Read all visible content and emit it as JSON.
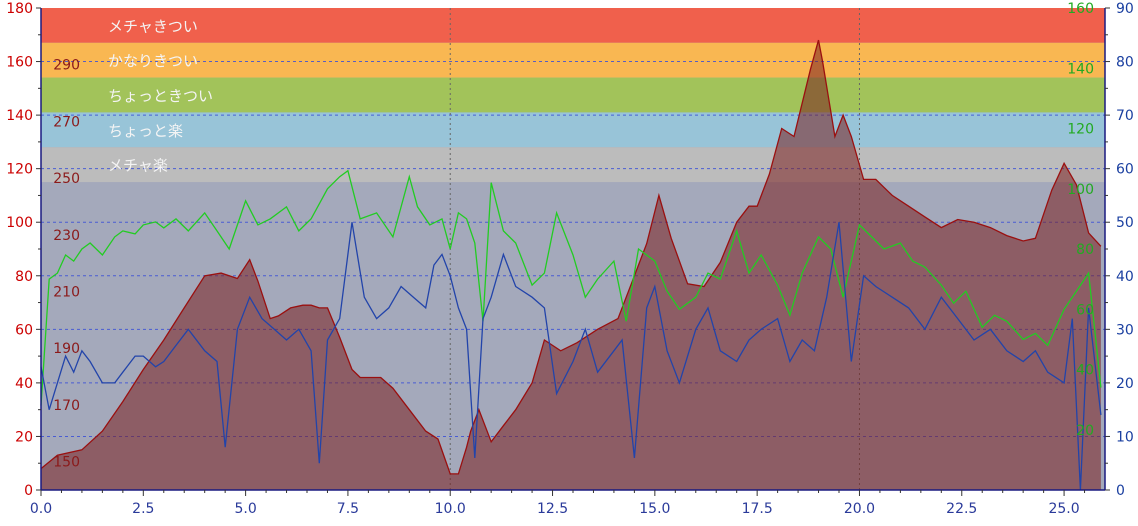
{
  "chart_data": {
    "type": "area",
    "x_ticks": [
      "0.0",
      "2.5",
      "5.0",
      "7.5",
      "10.0",
      "12.5",
      "15.0",
      "17.5",
      "20.0",
      "22.5",
      "25.0"
    ],
    "x_tick_values": [
      0,
      2.5,
      5,
      7.5,
      10,
      12.5,
      15,
      17.5,
      20,
      22.5,
      25
    ],
    "x_range": [
      0,
      26
    ],
    "axis_left": {
      "ticks": [
        "0",
        "20",
        "40",
        "60",
        "80",
        "100",
        "120",
        "140",
        "160",
        "180"
      ],
      "range": [
        0,
        180
      ],
      "color": "#cc0000"
    },
    "axis_elev": {
      "ticks": [
        "150",
        "170",
        "190",
        "210",
        "230",
        "250",
        "270",
        "290"
      ],
      "range": [
        140,
        310
      ],
      "color": "#8b1a1a"
    },
    "axis_green": {
      "ticks": [
        "20",
        "40",
        "60",
        "80",
        "100",
        "120",
        "140",
        "160"
      ],
      "range": [
        0,
        160
      ],
      "color": "#22aa22"
    },
    "axis_right": {
      "ticks": [
        "0",
        "10",
        "20",
        "30",
        "40",
        "50",
        "60",
        "70",
        "80",
        "90"
      ],
      "range": [
        0,
        90
      ],
      "color": "#1a3fa0"
    },
    "zones": [
      {
        "label": "メチャきつい",
        "from": 167,
        "to": 180,
        "color": "#f0604c"
      },
      {
        "label": "かなりきつい",
        "from": 154,
        "to": 167,
        "color": "#f9b752"
      },
      {
        "label": "ちょっときつい",
        "from": 141,
        "to": 154,
        "color": "#a2c35a"
      },
      {
        "label": "ちょっと楽",
        "from": 128,
        "to": 141,
        "color": "#98c4d8"
      },
      {
        "label": "メチャ楽",
        "from": 115,
        "to": 128,
        "color": "#bcbcbc"
      }
    ],
    "series": [
      {
        "kind": "elevation",
        "axis": "axis_left",
        "color": "#8a1c1c",
        "x": [
          0,
          0.4,
          1.0,
          1.5,
          2.0,
          2.5,
          3.0,
          3.5,
          4.0,
          4.4,
          4.8,
          5.1,
          5.3,
          5.6,
          5.8,
          6.1,
          6.4,
          6.6,
          6.8,
          7.0,
          7.3,
          7.6,
          7.8,
          8.0,
          8.3,
          8.6,
          9.0,
          9.4,
          9.7,
          10.0,
          10.2,
          10.4,
          10.5,
          10.7,
          11.0,
          11.3,
          11.6,
          12.0,
          12.3,
          12.7,
          13.1,
          13.6,
          14.1,
          14.5,
          14.8,
          15.1,
          15.4,
          15.8,
          16.2,
          16.6,
          17.0,
          17.3,
          17.5,
          17.8,
          18.1,
          18.4,
          18.8,
          19.0,
          19.1,
          19.4,
          19.6,
          19.8,
          20.1,
          20.4,
          20.8,
          21.2,
          21.6,
          22.0,
          22.4,
          22.8,
          23.2,
          23.6,
          24.0,
          24.3,
          24.7,
          25.0,
          25.3,
          25.6,
          25.9
        ],
        "values": [
          8,
          13,
          15,
          22,
          33,
          45,
          56,
          68,
          80,
          81,
          79,
          86,
          78,
          64,
          65,
          68,
          69,
          69,
          68,
          68,
          57,
          45,
          42,
          42,
          42,
          38,
          30,
          22,
          19,
          6,
          6,
          16,
          22,
          30,
          18,
          24,
          30,
          40,
          56,
          52,
          55,
          60,
          64,
          80,
          92,
          110,
          94,
          77,
          76,
          85,
          100,
          106,
          106,
          118,
          135,
          132,
          157,
          168,
          160,
          132,
          140,
          132,
          116,
          116,
          110,
          106,
          102,
          98,
          101,
          100,
          98,
          95,
          93,
          94,
          112,
          122,
          114,
          96,
          91
        ]
      },
      {
        "kind": "heart_rate",
        "axis": "axis_green",
        "color": "#22cc22",
        "x": [
          0,
          0.2,
          0.4,
          0.6,
          0.8,
          1.0,
          1.2,
          1.5,
          1.8,
          2.0,
          2.3,
          2.5,
          2.8,
          3.0,
          3.3,
          3.6,
          4.0,
          4.3,
          4.6,
          5.0,
          5.3,
          5.6,
          6.0,
          6.3,
          6.6,
          7.0,
          7.3,
          7.5,
          7.8,
          8.2,
          8.6,
          9.0,
          9.2,
          9.5,
          9.8,
          10.0,
          10.2,
          10.4,
          10.6,
          10.8,
          11.0,
          11.3,
          11.6,
          12.0,
          12.3,
          12.6,
          13.0,
          13.3,
          13.6,
          14.0,
          14.3,
          14.6,
          15.0,
          15.3,
          15.6,
          16.0,
          16.3,
          16.6,
          17.0,
          17.3,
          17.6,
          18.0,
          18.3,
          18.6,
          19.0,
          19.3,
          19.6,
          20.0,
          20.3,
          20.6,
          21.0,
          21.3,
          21.6,
          22.0,
          22.3,
          22.6,
          23.0,
          23.3,
          23.6,
          24.0,
          24.3,
          24.6,
          25.0,
          25.3,
          25.6,
          25.9
        ],
        "values": [
          28,
          70,
          72,
          78,
          76,
          80,
          82,
          78,
          84,
          86,
          85,
          88,
          89,
          87,
          90,
          86,
          92,
          86,
          80,
          96,
          88,
          90,
          94,
          86,
          90,
          100,
          104,
          106,
          90,
          92,
          84,
          104,
          94,
          88,
          90,
          80,
          92,
          90,
          82,
          56,
          102,
          86,
          82,
          68,
          72,
          92,
          78,
          64,
          70,
          76,
          56,
          80,
          76,
          66,
          60,
          64,
          72,
          70,
          86,
          72,
          78,
          68,
          58,
          72,
          84,
          80,
          64,
          88,
          84,
          80,
          82,
          76,
          74,
          68,
          62,
          66,
          54,
          58,
          56,
          50,
          52,
          48,
          60,
          66,
          72,
          34
        ]
      },
      {
        "kind": "secondary",
        "axis": "axis_right",
        "color": "#2244aa",
        "x": [
          0,
          0.2,
          0.4,
          0.6,
          0.8,
          1.0,
          1.2,
          1.5,
          1.8,
          2.0,
          2.3,
          2.5,
          2.8,
          3.0,
          3.3,
          3.6,
          4.0,
          4.3,
          4.5,
          4.8,
          5.1,
          5.4,
          5.7,
          6.0,
          6.3,
          6.6,
          6.8,
          7.0,
          7.3,
          7.6,
          7.9,
          8.2,
          8.5,
          8.8,
          9.1,
          9.4,
          9.6,
          9.8,
          10.0,
          10.2,
          10.4,
          10.6,
          10.8,
          11.0,
          11.3,
          11.6,
          12.0,
          12.3,
          12.6,
          13.0,
          13.3,
          13.6,
          14.0,
          14.2,
          14.5,
          14.8,
          15.0,
          15.3,
          15.6,
          16.0,
          16.3,
          16.6,
          17.0,
          17.3,
          17.6,
          18.0,
          18.3,
          18.6,
          18.9,
          19.2,
          19.5,
          19.8,
          20.1,
          20.4,
          20.8,
          21.2,
          21.6,
          22.0,
          22.4,
          22.8,
          23.2,
          23.6,
          24.0,
          24.3,
          24.6,
          25.0,
          25.2,
          25.4,
          25.6,
          25.9
        ],
        "values": [
          23,
          15,
          20,
          25,
          22,
          26,
          24,
          20,
          20,
          22,
          25,
          25,
          23,
          24,
          27,
          30,
          26,
          24,
          8,
          30,
          36,
          32,
          30,
          28,
          30,
          26,
          5,
          28,
          32,
          50,
          36,
          32,
          34,
          38,
          36,
          34,
          42,
          44,
          40,
          34,
          30,
          6,
          32,
          36,
          44,
          38,
          36,
          34,
          18,
          24,
          30,
          22,
          26,
          28,
          6,
          34,
          38,
          26,
          20,
          30,
          34,
          26,
          24,
          28,
          30,
          32,
          24,
          28,
          26,
          36,
          50,
          24,
          40,
          38,
          36,
          34,
          30,
          36,
          32,
          28,
          30,
          26,
          24,
          26,
          22,
          20,
          32,
          0,
          34,
          14
        ]
      }
    ]
  }
}
